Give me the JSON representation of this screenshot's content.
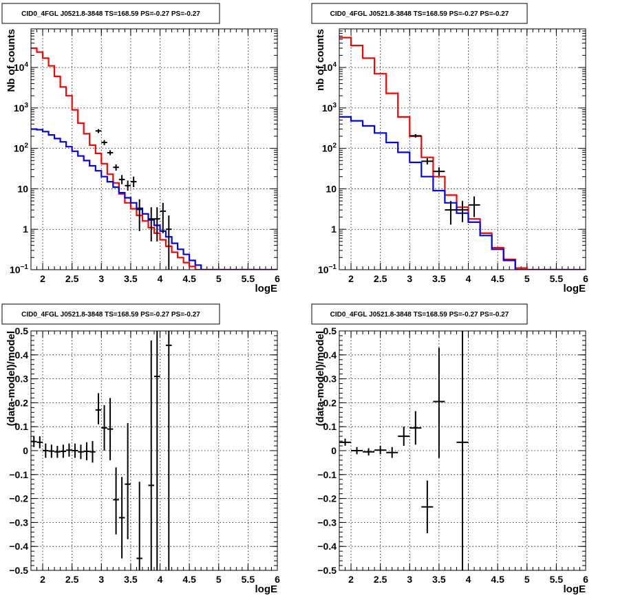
{
  "chart_data": [
    {
      "type": "step-histogram",
      "title": "CID0_4FGL J0521.8-3848 TS=168.59 PS=-0.27 PS=-0.27",
      "xlabel": "logE",
      "ylabel": "Nb of counts",
      "xlim": [
        1.8,
        6
      ],
      "ylim": [
        0.1,
        90000
      ],
      "yscale": "log",
      "xticks": [
        2,
        2.5,
        3,
        3.5,
        4,
        4.5,
        5,
        5.5,
        6
      ],
      "xtick_labels": [
        "2",
        "2.5",
        "3",
        "3.5",
        "4",
        "4.5",
        "5",
        "5.5",
        "6"
      ],
      "yticks": [
        0.1,
        1,
        10,
        100,
        1000,
        10000
      ],
      "ytick_labels": [
        "10⁻¹",
        "1",
        "10",
        "10²",
        "10³",
        "10⁴"
      ],
      "grid": true,
      "bin_edges": [
        1.8,
        1.9,
        2.0,
        2.1,
        2.2,
        2.3,
        2.4,
        2.5,
        2.6,
        2.7,
        2.8,
        2.9,
        3.0,
        3.1,
        3.2,
        3.3,
        3.4,
        3.5,
        3.6,
        3.7,
        3.8,
        3.9,
        4.0,
        4.1,
        4.2,
        4.3,
        4.4,
        4.5,
        4.6,
        4.7,
        4.8,
        4.9,
        5.0,
        5.1,
        5.2,
        5.3,
        5.4,
        5.5,
        5.6,
        5.7,
        5.8,
        5.9,
        6.0
      ],
      "series": [
        {
          "color": "#ff0000",
          "values": [
            30000,
            24000,
            17000,
            11000,
            6000,
            3300,
            2000,
            900,
            420,
            230,
            120,
            75,
            42,
            23,
            14,
            7.5,
            4.5,
            3.2,
            2.2,
            1.6,
            1.1,
            0.8,
            0.55,
            0.38,
            0.27,
            0.2,
            0.15,
            0.12,
            0.1,
            0.1,
            0.1,
            0.1,
            0.1,
            0.1,
            0.1,
            0.1,
            0.1,
            0.1,
            0.1,
            0.1,
            0.1,
            0.1
          ]
        },
        {
          "color": "#0000ff",
          "values": [
            300,
            290,
            260,
            215,
            175,
            145,
            110,
            85,
            65,
            50,
            37,
            28,
            20,
            15,
            11,
            8,
            6,
            4.5,
            3.3,
            2.4,
            1.7,
            1.25,
            0.9,
            0.65,
            0.45,
            0.32,
            0.24,
            0.17,
            0.13,
            0.1,
            0.1,
            0.1,
            0.1,
            0.1,
            0.1,
            0.1,
            0.1,
            0.1,
            0.1,
            0.1,
            0.1,
            0.1
          ]
        }
      ],
      "points": [
        {
          "x": 2.95,
          "y": 270,
          "ylo": 240,
          "yhi": 300,
          "xerr": 0.05
        },
        {
          "x": 3.05,
          "y": 140,
          "ylo": 120,
          "yhi": 160,
          "xerr": 0.05
        },
        {
          "x": 3.15,
          "y": 78,
          "ylo": 68,
          "yhi": 90,
          "xerr": 0.05
        },
        {
          "x": 3.25,
          "y": 34,
          "ylo": 28,
          "yhi": 40,
          "xerr": 0.05
        },
        {
          "x": 3.35,
          "y": 17,
          "ylo": 13,
          "yhi": 22,
          "xerr": 0.05
        },
        {
          "x": 3.45,
          "y": 12,
          "ylo": 9,
          "yhi": 16,
          "xerr": 0.05
        },
        {
          "x": 3.55,
          "y": 15,
          "ylo": 11,
          "yhi": 20,
          "xerr": 0.05
        },
        {
          "x": 3.65,
          "y": 3.1,
          "ylo": 0.9,
          "yhi": 5.5,
          "xerr": 0.05
        },
        {
          "x": 3.85,
          "y": 1.8,
          "ylo": 0.5,
          "yhi": 3.5,
          "xerr": 0.05
        },
        {
          "x": 3.95,
          "y": 1.8,
          "ylo": 0.5,
          "yhi": 3.5,
          "xerr": 0.05
        },
        {
          "x": 4.05,
          "y": 2.8,
          "ylo": 0.8,
          "yhi": 4.5,
          "xerr": 0.05
        },
        {
          "x": 4.15,
          "y": 1.0,
          "ylo": 0.1,
          "yhi": 2.2,
          "xerr": 0.05
        }
      ]
    },
    {
      "type": "step-histogram",
      "title": "CID0_4FGL J0521.8-3848 TS=168.59 PS=-0.27 PS=-0.27",
      "xlabel": "logE",
      "ylabel": "nb of counts",
      "xlim": [
        1.8,
        6
      ],
      "ylim": [
        0.1,
        90000
      ],
      "yscale": "log",
      "xticks": [
        2,
        2.5,
        3,
        3.5,
        4,
        4.5,
        5,
        5.5,
        6
      ],
      "xtick_labels": [
        "2",
        "2.5",
        "3",
        "3.5",
        "4",
        "4.5",
        "5",
        "5.5",
        "6"
      ],
      "yticks": [
        0.1,
        1,
        10,
        100,
        1000,
        10000
      ],
      "ytick_labels": [
        "10⁻¹",
        "1",
        "10",
        "10²",
        "10³",
        "10⁴"
      ],
      "grid": true,
      "bin_edges": [
        1.8,
        2.0,
        2.2,
        2.4,
        2.6,
        2.8,
        3.0,
        3.2,
        3.4,
        3.6,
        3.8,
        4.0,
        4.2,
        4.4,
        4.6,
        4.8,
        5.0,
        5.2,
        5.4,
        5.6,
        5.8,
        6.0
      ],
      "series": [
        {
          "color": "#ff0000",
          "values": [
            55000,
            35000,
            17000,
            7000,
            2300,
            600,
            200,
            60,
            20,
            7,
            3.5,
            1.8,
            0.8,
            0.35,
            0.18,
            0.11,
            0.1,
            0.1,
            0.1,
            0.1,
            0.1
          ]
        },
        {
          "color": "#0000ff",
          "values": [
            600,
            480,
            360,
            240,
            140,
            80,
            45,
            20,
            9,
            4.5,
            2.5,
            1.5,
            0.7,
            0.32,
            0.17,
            0.1,
            0.1,
            0.1,
            0.1,
            0.1,
            0.1
          ]
        }
      ],
      "points": [
        {
          "x": 3.1,
          "y": 205,
          "ylo": 185,
          "yhi": 225,
          "xerr": 0.1
        },
        {
          "x": 3.3,
          "y": 48,
          "ylo": 40,
          "yhi": 57,
          "xerr": 0.1
        },
        {
          "x": 3.5,
          "y": 27,
          "ylo": 21,
          "yhi": 34,
          "xerr": 0.1
        },
        {
          "x": 3.7,
          "y": 3.0,
          "ylo": 1.3,
          "yhi": 5.0,
          "xerr": 0.1
        },
        {
          "x": 3.9,
          "y": 3.0,
          "ylo": 1.5,
          "yhi": 5.0,
          "xerr": 0.1
        },
        {
          "x": 4.1,
          "y": 4.0,
          "ylo": 2.0,
          "yhi": 6.5,
          "xerr": 0.1
        }
      ]
    },
    {
      "type": "errorbar",
      "title": "CID0_4FGL J0521.8-3848 TS=168.59 PS=-0.27 PS=-0.27",
      "xlabel": "logE",
      "ylabel": "(data-model)/model",
      "xlim": [
        1.8,
        6
      ],
      "ylim": [
        -0.5,
        0.5
      ],
      "yscale": "linear",
      "xticks": [
        2,
        2.5,
        3,
        3.5,
        4,
        4.5,
        5,
        5.5,
        6
      ],
      "xtick_labels": [
        "2",
        "2.5",
        "3",
        "3.5",
        "4",
        "4.5",
        "5",
        "5.5",
        "6"
      ],
      "yticks": [
        -0.5,
        -0.4,
        -0.3,
        -0.2,
        -0.1,
        0,
        0.1,
        0.2,
        0.3,
        0.4,
        0.5
      ],
      "ytick_labels": [
        "−0.5",
        "−0.4",
        "−0.3",
        "−0.2",
        "−0.1",
        "0",
        "0.1",
        "0.2",
        "0.3",
        "0.4",
        "0.5"
      ],
      "grid": true,
      "points": [
        {
          "x": 1.85,
          "y": 0.038,
          "ylo": 0.015,
          "yhi": 0.06,
          "xerr": 0.05
        },
        {
          "x": 1.95,
          "y": 0.035,
          "ylo": 0.01,
          "yhi": 0.06,
          "xerr": 0.05
        },
        {
          "x": 2.05,
          "y": 0.0,
          "ylo": -0.03,
          "yhi": 0.03,
          "xerr": 0.05
        },
        {
          "x": 2.15,
          "y": -0.002,
          "ylo": -0.03,
          "yhi": 0.025,
          "xerr": 0.05
        },
        {
          "x": 2.25,
          "y": -0.005,
          "ylo": -0.03,
          "yhi": 0.02,
          "xerr": 0.05
        },
        {
          "x": 2.35,
          "y": -0.003,
          "ylo": -0.03,
          "yhi": 0.025,
          "xerr": 0.05
        },
        {
          "x": 2.45,
          "y": 0.002,
          "ylo": -0.025,
          "yhi": 0.03,
          "xerr": 0.05
        },
        {
          "x": 2.55,
          "y": 0.0,
          "ylo": -0.03,
          "yhi": 0.03,
          "xerr": 0.05
        },
        {
          "x": 2.65,
          "y": -0.005,
          "ylo": -0.035,
          "yhi": 0.025,
          "xerr": 0.05
        },
        {
          "x": 2.75,
          "y": -0.003,
          "ylo": -0.04,
          "yhi": 0.035,
          "xerr": 0.05
        },
        {
          "x": 2.85,
          "y": -0.005,
          "ylo": -0.05,
          "yhi": 0.04,
          "xerr": 0.05
        },
        {
          "x": 2.95,
          "y": 0.17,
          "ylo": 0.11,
          "yhi": 0.24,
          "xerr": 0.05
        },
        {
          "x": 3.05,
          "y": 0.095,
          "ylo": 0.0,
          "yhi": 0.19,
          "xerr": 0.05
        },
        {
          "x": 3.15,
          "y": 0.09,
          "ylo": -0.04,
          "yhi": 0.22,
          "xerr": 0.05
        },
        {
          "x": 3.25,
          "y": -0.205,
          "ylo": -0.35,
          "yhi": -0.07,
          "xerr": 0.05
        },
        {
          "x": 3.35,
          "y": -0.28,
          "ylo": -0.45,
          "yhi": -0.11,
          "xerr": 0.05
        },
        {
          "x": 3.45,
          "y": -0.14,
          "ylo": -0.37,
          "yhi": 0.115,
          "xerr": 0.05
        },
        {
          "x": 3.65,
          "y": -0.45,
          "ylo": -0.5,
          "yhi": -0.13,
          "xerr": 0.05
        },
        {
          "x": 3.85,
          "y": -0.145,
          "ylo": -0.5,
          "yhi": 0.46,
          "xerr": 0.05
        },
        {
          "x": 3.95,
          "y": 0.31,
          "ylo": -0.5,
          "yhi": 0.5,
          "xerr": 0.05
        },
        {
          "x": 4.15,
          "y": 0.44,
          "ylo": -0.5,
          "yhi": 0.5,
          "xerr": 0.05
        }
      ]
    },
    {
      "type": "errorbar",
      "title": "CID0_4FGL J0521.8-3848 TS=168.59 PS=-0.27 PS=-0.27",
      "xlabel": "logE",
      "ylabel": "(data-model)/model",
      "xlim": [
        1.8,
        6
      ],
      "ylim": [
        -0.5,
        0.5
      ],
      "yscale": "linear",
      "xticks": [
        2,
        2.5,
        3,
        3.5,
        4,
        4.5,
        5,
        5.5,
        6
      ],
      "xtick_labels": [
        "2",
        "2.5",
        "3",
        "3.5",
        "4",
        "4.5",
        "5",
        "5.5",
        "6"
      ],
      "yticks": [
        -0.5,
        -0.4,
        -0.3,
        -0.2,
        -0.1,
        0,
        0.1,
        0.2,
        0.3,
        0.4,
        0.5
      ],
      "ytick_labels": [
        "−0.5",
        "−0.4",
        "−0.3",
        "−0.2",
        "−0.1",
        "0",
        "0.1",
        "0.2",
        "0.3",
        "0.4",
        "0.5"
      ],
      "grid": true,
      "points": [
        {
          "x": 1.9,
          "y": 0.035,
          "ylo": 0.02,
          "yhi": 0.05,
          "xerr": 0.1
        },
        {
          "x": 2.1,
          "y": 0.0,
          "ylo": -0.015,
          "yhi": 0.015,
          "xerr": 0.1
        },
        {
          "x": 2.3,
          "y": -0.005,
          "ylo": -0.02,
          "yhi": 0.01,
          "xerr": 0.1
        },
        {
          "x": 2.5,
          "y": 0.002,
          "ylo": -0.015,
          "yhi": 0.02,
          "xerr": 0.1
        },
        {
          "x": 2.7,
          "y": -0.008,
          "ylo": -0.03,
          "yhi": 0.015,
          "xerr": 0.1
        },
        {
          "x": 2.9,
          "y": 0.06,
          "ylo": 0.02,
          "yhi": 0.1,
          "xerr": 0.1
        },
        {
          "x": 3.1,
          "y": 0.095,
          "ylo": 0.025,
          "yhi": 0.165,
          "xerr": 0.1
        },
        {
          "x": 3.3,
          "y": -0.235,
          "ylo": -0.345,
          "yhi": -0.125,
          "xerr": 0.1
        },
        {
          "x": 3.5,
          "y": 0.205,
          "ylo": -0.03,
          "yhi": 0.43,
          "xerr": 0.1
        },
        {
          "x": 3.9,
          "y": 0.035,
          "ylo": -0.5,
          "yhi": 0.5,
          "xerr": 0.1
        }
      ]
    }
  ]
}
